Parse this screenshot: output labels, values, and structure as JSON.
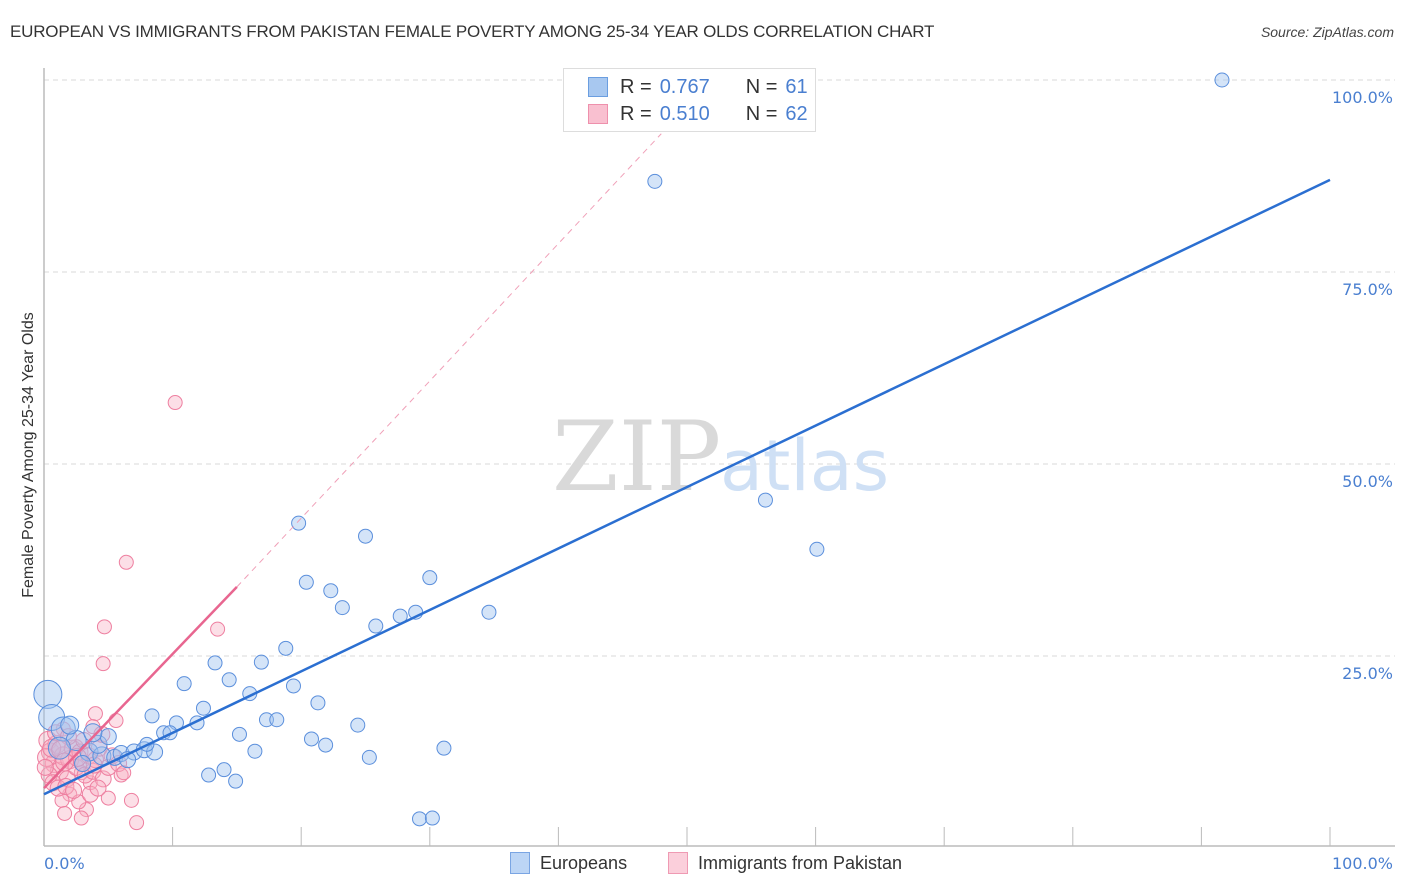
{
  "header": {
    "title": "EUROPEAN VS IMMIGRANTS FROM PAKISTAN FEMALE POVERTY AMONG 25-34 YEAR OLDS CORRELATION CHART",
    "source": "Source: ZipAtlas.com"
  },
  "watermark": {
    "zip": "ZIP",
    "atlas": "atlas"
  },
  "legend": {
    "rows": [
      {
        "r_label": "R =",
        "r_value": "0.767",
        "n_label": "N =",
        "n_value": "61",
        "color": "#a8c8f0",
        "border": "#6b9ee0"
      },
      {
        "r_label": "R =",
        "r_value": "0.510",
        "n_label": "N =",
        "n_value": "62",
        "color": "#f9c0d0",
        "border": "#ee90ac"
      }
    ]
  },
  "bottom_legend": {
    "items": [
      {
        "label": "Europeans",
        "color": "#bcd5f5",
        "border": "#7aa5e3"
      },
      {
        "label": "Immigrants from Pakistan",
        "color": "#fbcfdb",
        "border": "#ef9ab3"
      }
    ]
  },
  "colors": {
    "blue_fill": "rgba(160,196,240,0.45)",
    "blue_stroke": "#5b8fdc",
    "blue_line": "#2b6fd1",
    "pink_fill": "rgba(247,176,196,0.40)",
    "pink_stroke": "#ee7fa0",
    "pink_line": "#e86690",
    "grid": "#d9d9d9",
    "axis": "#bbbbbb",
    "tick_text": "#4a7fd0"
  },
  "chart_data": {
    "type": "scatter",
    "title": "EUROPEAN VS IMMIGRANTS FROM PAKISTAN FEMALE POVERTY AMONG 25-34 YEAR OLDS CORRELATION CHART",
    "xlabel": "",
    "ylabel": "Female Poverty Among 25-34 Year Olds",
    "xlim": [
      0,
      100
    ],
    "ylim": [
      0,
      100
    ],
    "x_tick_labels": [
      "0.0%",
      "100.0%"
    ],
    "y_tick_labels": [
      "100.0%",
      "75.0%",
      "50.0%",
      "25.0%"
    ],
    "y_ticks": [
      100,
      75,
      50,
      25
    ],
    "x_minor_ticks": [
      10,
      20,
      30,
      40,
      50,
      60,
      70,
      80,
      90,
      100
    ],
    "grid": "horizontal dashed",
    "legend_position": "top-center",
    "series": [
      {
        "name": "Europeans",
        "R": 0.767,
        "N": 61,
        "trendline": {
          "x": [
            0,
            100
          ],
          "y": [
            7.0,
            87.0
          ],
          "style": "solid"
        },
        "points": [
          [
            91.6,
            100.0,
            7
          ],
          [
            47.5,
            86.8,
            7
          ],
          [
            56.1,
            45.3,
            7
          ],
          [
            60.1,
            38.9,
            7
          ],
          [
            19.8,
            42.3,
            7
          ],
          [
            25.0,
            40.6,
            7
          ],
          [
            30.0,
            35.2,
            7
          ],
          [
            20.4,
            34.6,
            7
          ],
          [
            22.3,
            33.5,
            7
          ],
          [
            34.6,
            30.7,
            7
          ],
          [
            23.2,
            31.3,
            7
          ],
          [
            28.9,
            30.7,
            7
          ],
          [
            25.8,
            28.9,
            7
          ],
          [
            27.7,
            30.2,
            7
          ],
          [
            18.8,
            26.0,
            7
          ],
          [
            13.3,
            24.1,
            7
          ],
          [
            16.9,
            24.2,
            7
          ],
          [
            10.9,
            21.4,
            7
          ],
          [
            14.4,
            21.9,
            7
          ],
          [
            19.4,
            21.1,
            7
          ],
          [
            16.0,
            20.1,
            7
          ],
          [
            12.4,
            18.2,
            7
          ],
          [
            21.3,
            18.9,
            7
          ],
          [
            8.4,
            17.2,
            7
          ],
          [
            10.3,
            16.3,
            7
          ],
          [
            11.9,
            16.3,
            7
          ],
          [
            17.3,
            16.7,
            7
          ],
          [
            18.1,
            16.7,
            7
          ],
          [
            24.4,
            16.0,
            7
          ],
          [
            15.2,
            14.8,
            7
          ],
          [
            20.8,
            14.2,
            7
          ],
          [
            21.9,
            13.4,
            7
          ],
          [
            9.3,
            15.0,
            7
          ],
          [
            9.8,
            15.0,
            7
          ],
          [
            31.1,
            13.0,
            7
          ],
          [
            16.4,
            12.6,
            7
          ],
          [
            25.3,
            11.8,
            7
          ],
          [
            12.8,
            9.5,
            7
          ],
          [
            14.0,
            10.2,
            7
          ],
          [
            14.9,
            8.7,
            7
          ],
          [
            29.2,
            3.8,
            7
          ],
          [
            30.2,
            3.9,
            7
          ],
          [
            0.3,
            20.0,
            14
          ],
          [
            0.6,
            17.0,
            13
          ],
          [
            1.5,
            15.5,
            12
          ],
          [
            2.5,
            14.0,
            10
          ],
          [
            1.2,
            13.0,
            11
          ],
          [
            3.5,
            12.5,
            9
          ],
          [
            4.5,
            12.0,
            9
          ],
          [
            5.5,
            11.8,
            8
          ],
          [
            6.0,
            12.3,
            8
          ],
          [
            7.0,
            12.5,
            8
          ],
          [
            7.8,
            12.8,
            8
          ],
          [
            8.6,
            12.5,
            8
          ],
          [
            3.0,
            11.0,
            8
          ],
          [
            4.2,
            13.5,
            9
          ],
          [
            2.0,
            16.0,
            9
          ],
          [
            5.0,
            14.5,
            8
          ],
          [
            6.5,
            11.5,
            8
          ],
          [
            3.8,
            15.0,
            9
          ],
          [
            8.0,
            13.5,
            7
          ]
        ]
      },
      {
        "name": "Immigrants from Pakistan",
        "R": 0.51,
        "N": 62,
        "trendline": {
          "x": [
            0,
            15
          ],
          "y": [
            7.8,
            34.0
          ],
          "style": "solid",
          "extension": {
            "x": [
              15,
              48
            ],
            "y": [
              34.0,
              93.0
            ],
            "style": "dashed"
          }
        },
        "points": [
          [
            10.2,
            58.0,
            7
          ],
          [
            6.4,
            37.2,
            7
          ],
          [
            4.7,
            28.8,
            7
          ],
          [
            13.5,
            28.5,
            7
          ],
          [
            4.6,
            24.0,
            7
          ],
          [
            4.0,
            17.5,
            7
          ],
          [
            5.6,
            16.6,
            7
          ],
          [
            3.8,
            15.8,
            7
          ],
          [
            2.5,
            13.2,
            7
          ],
          [
            1.5,
            15.5,
            7
          ],
          [
            6.0,
            9.5,
            7
          ],
          [
            3.6,
            8.5,
            7
          ],
          [
            2.9,
            9.8,
            7
          ],
          [
            2.0,
            7.0,
            7
          ],
          [
            3.3,
            5.0,
            7
          ],
          [
            1.4,
            6.2,
            7
          ],
          [
            2.7,
            6.0,
            7
          ],
          [
            5.0,
            6.5,
            7
          ],
          [
            6.8,
            6.2,
            7
          ],
          [
            7.2,
            3.3,
            7
          ],
          [
            2.9,
            3.9,
            7
          ],
          [
            1.6,
            4.5,
            7
          ],
          [
            0.3,
            14.0,
            9
          ],
          [
            0.5,
            12.5,
            9
          ],
          [
            0.8,
            11.0,
            9
          ],
          [
            1.0,
            13.5,
            9
          ],
          [
            1.2,
            10.0,
            9
          ],
          [
            1.5,
            12.0,
            9
          ],
          [
            1.8,
            9.0,
            8
          ],
          [
            2.0,
            11.5,
            9
          ],
          [
            2.2,
            13.0,
            8
          ],
          [
            2.5,
            10.5,
            8
          ],
          [
            2.8,
            12.5,
            8
          ],
          [
            3.0,
            11.0,
            8
          ],
          [
            3.2,
            9.5,
            8
          ],
          [
            3.5,
            12.0,
            8
          ],
          [
            3.8,
            10.0,
            8
          ],
          [
            4.0,
            11.5,
            8
          ],
          [
            4.3,
            13.0,
            8
          ],
          [
            4.6,
            9.0,
            8
          ],
          [
            5.0,
            10.5,
            8
          ],
          [
            5.3,
            12.0,
            8
          ],
          [
            0.4,
            9.5,
            8
          ],
          [
            0.7,
            8.5,
            8
          ],
          [
            1.1,
            7.8,
            8
          ],
          [
            1.7,
            8.0,
            8
          ],
          [
            2.3,
            7.5,
            8
          ],
          [
            3.6,
            7.0,
            8
          ],
          [
            4.2,
            7.8,
            8
          ],
          [
            0.2,
            11.8,
            9
          ],
          [
            0.9,
            15.0,
            8
          ],
          [
            1.9,
            14.5,
            8
          ],
          [
            3.1,
            14.0,
            8
          ],
          [
            4.5,
            14.8,
            8
          ],
          [
            5.8,
            11.0,
            8
          ],
          [
            6.2,
            9.8,
            7
          ],
          [
            0.6,
            13.0,
            9
          ],
          [
            1.3,
            12.8,
            9
          ],
          [
            2.6,
            11.8,
            9
          ],
          [
            3.9,
            10.8,
            8
          ],
          [
            0.1,
            10.5,
            8
          ],
          [
            1.6,
            11.2,
            9
          ]
        ]
      }
    ]
  }
}
